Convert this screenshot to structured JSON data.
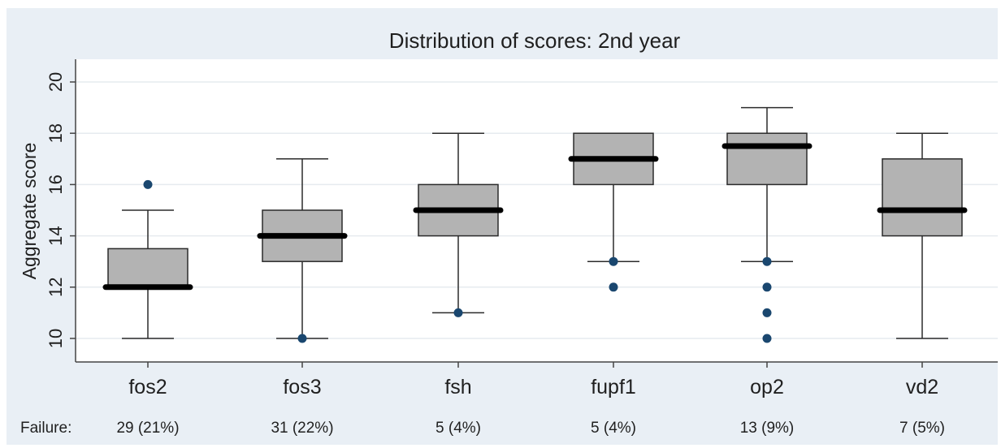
{
  "chart_data": {
    "type": "box",
    "title": "Distribution of scores: 2nd year",
    "ylabel": "Aggregate score",
    "xlabel": "",
    "ylim": [
      9.2,
      20.9
    ],
    "yticks": [
      10,
      12,
      14,
      16,
      18,
      20
    ],
    "grid": true,
    "categories": [
      "fos2",
      "fos3",
      "fsh",
      "fupf1",
      "op2",
      "vd2"
    ],
    "boxes": [
      {
        "category": "fos2",
        "whisker_low": 10,
        "q1": 12,
        "median": 12,
        "q3": 13.5,
        "whisker_high": 15,
        "outliers": [
          16
        ]
      },
      {
        "category": "fos3",
        "whisker_low": 10,
        "q1": 13,
        "median": 14,
        "q3": 15,
        "whisker_high": 17,
        "outliers": [
          10
        ]
      },
      {
        "category": "fsh",
        "whisker_low": 11,
        "q1": 14,
        "median": 15,
        "q3": 16,
        "whisker_high": 18,
        "outliers": [
          11
        ]
      },
      {
        "category": "fupf1",
        "whisker_low": 13,
        "q1": 16,
        "median": 17,
        "q3": 18,
        "whisker_high": 18,
        "outliers": [
          13,
          12
        ]
      },
      {
        "category": "op2",
        "whisker_low": 13,
        "q1": 16,
        "median": 17.5,
        "q3": 18,
        "whisker_high": 19,
        "outliers": [
          13,
          12,
          11,
          10
        ]
      },
      {
        "category": "vd2",
        "whisker_low": 10,
        "q1": 14,
        "median": 15,
        "q3": 17,
        "whisker_high": 18,
        "outliers": []
      }
    ],
    "failure_label": "Failure:",
    "failure_values": [
      "29 (21%)",
      "31 (22%)",
      "5 (4%)",
      "5 (4%)",
      "13 (9%)",
      "7 (5%)"
    ],
    "colors": {
      "outer_background": "#e9eff5",
      "plot_background": "#ffffff",
      "grid": "#e6ebef",
      "box_fill": "#b3b3b3",
      "box_stroke": "#2b2b2b",
      "median": "#000000",
      "outlier": "#1a476f",
      "axis": "#444444",
      "text": "#1f1f1f"
    }
  }
}
